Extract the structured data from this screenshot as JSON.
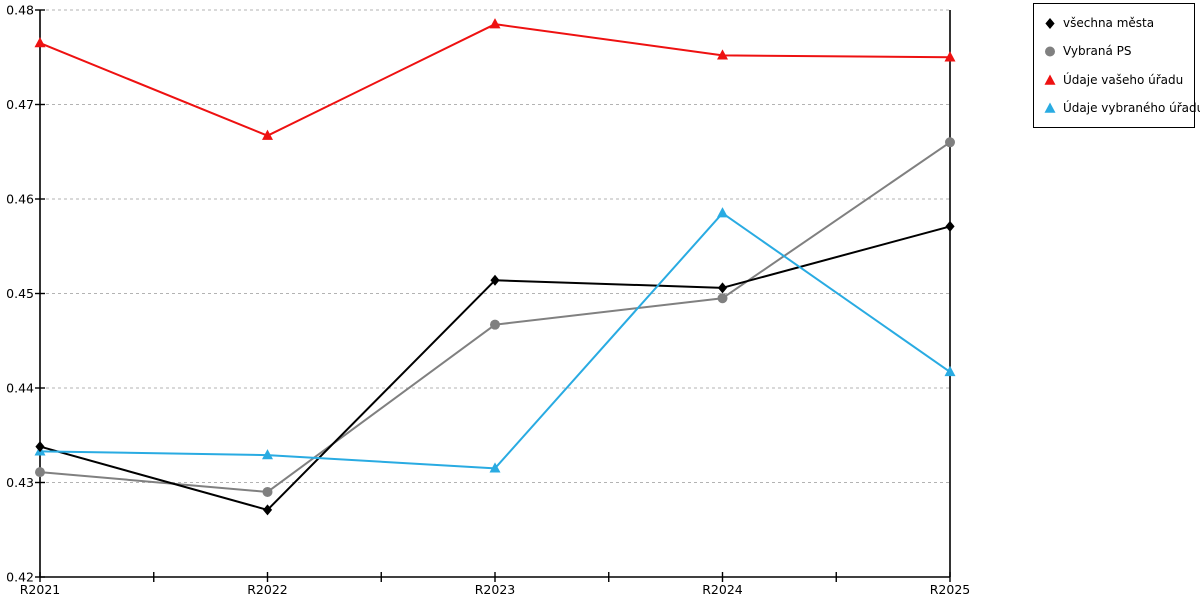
{
  "chart_data": {
    "type": "line",
    "title": "",
    "xlabel": "",
    "ylabel": "",
    "categories": [
      "R2021",
      "R2022",
      "R2023",
      "R2024",
      "R2025"
    ],
    "series": [
      {
        "name": "všechna města",
        "color": "#000000",
        "marker": "diamond",
        "values": [
          0.4338,
          0.4271,
          0.4514,
          0.4506,
          0.4571
        ]
      },
      {
        "name": "Vybraná PS",
        "color": "#808080",
        "marker": "circle",
        "values": [
          0.4311,
          0.429,
          0.4467,
          0.4495,
          0.466
        ]
      },
      {
        "name": "Údaje vašeho úřadu",
        "color": "#ee1111",
        "marker": "triangle",
        "values": [
          0.4765,
          0.4667,
          0.4785,
          0.4752,
          0.475
        ]
      },
      {
        "name": "Údaje vybraného úřadu",
        "color": "#29abe2",
        "marker": "triangle",
        "values": [
          0.4333,
          0.4329,
          0.4315,
          0.4585,
          0.4417
        ]
      }
    ],
    "ylim": [
      0.42,
      0.48
    ],
    "ytick_step": 0.01,
    "ytick_labels": [
      "0.42",
      "0.43",
      "0.44",
      "0.45",
      "0.46",
      "0.47",
      "0.48"
    ],
    "grid": true,
    "grid_style": "dashed",
    "x_minor_ticks": true,
    "legend_position": "outside-top-right",
    "line_draw_order": [
      "Vybraná PS",
      "všechna města",
      "Údaje vašeho úřadu",
      "Údaje vybraného úřadu"
    ]
  },
  "colors": {
    "background": "#ffffff",
    "axis": "#000000",
    "grid": "#b3b3b3",
    "text": "#000000",
    "legend_border": "#000000"
  }
}
